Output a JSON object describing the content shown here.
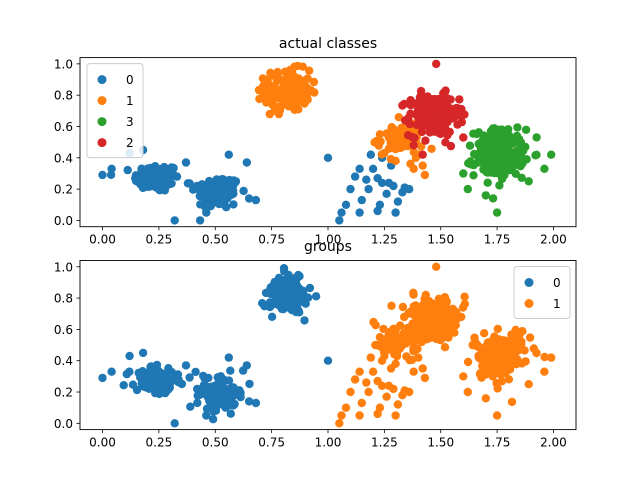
{
  "colors": {
    "class0": "#1f77b4",
    "class1": "#ff7f0e",
    "class3": "#2ca02c",
    "class2": "#d62728"
  },
  "chart_data": [
    {
      "type": "scatter",
      "title": "actual classes",
      "xlabel": "",
      "ylabel": "",
      "xlim": [
        -0.1,
        2.1
      ],
      "ylim": [
        -0.04,
        1.04
      ],
      "xticks": [
        "0.00",
        "0.25",
        "0.50",
        "0.75",
        "1.00",
        "1.25",
        "1.50",
        "1.75",
        "2.00"
      ],
      "yticks": [
        "0.0",
        "0.2",
        "0.4",
        "0.6",
        "0.8",
        "1.0"
      ],
      "grid": false,
      "legend_position": "top-left",
      "legend": [
        "0",
        "1",
        "3",
        "2"
      ],
      "series": [
        {
          "name": "0",
          "color": "#1f77b4",
          "clusters": [
            {
              "cx": 0.24,
              "cy": 0.27,
              "sx": 0.05,
              "sy": 0.045,
              "n": 110
            },
            {
              "cx": 0.51,
              "cy": 0.18,
              "sx": 0.05,
              "sy": 0.055,
              "n": 100
            }
          ],
          "points": [
            [
              0.0,
              0.29
            ],
            [
              0.04,
              0.33
            ],
            [
              0.12,
              0.43
            ],
            [
              0.18,
              0.45
            ],
            [
              0.32,
              0.0
            ],
            [
              0.37,
              0.37
            ],
            [
              0.42,
              0.22
            ],
            [
              0.56,
              0.42
            ],
            [
              0.64,
              0.37
            ],
            [
              0.65,
              0.14
            ],
            [
              0.68,
              0.13
            ],
            [
              0.46,
              0.05
            ],
            [
              1.0,
              0.4
            ],
            [
              1.05,
              0.0
            ],
            [
              1.06,
              0.05
            ],
            [
              1.08,
              0.1
            ],
            [
              1.1,
              0.2
            ],
            [
              1.12,
              0.28
            ],
            [
              1.14,
              0.33
            ],
            [
              1.15,
              0.13
            ],
            [
              1.17,
              0.26
            ],
            [
              1.18,
              0.2
            ],
            [
              1.19,
              0.42
            ],
            [
              1.2,
              0.33
            ],
            [
              1.21,
              0.5
            ],
            [
              1.22,
              0.27
            ],
            [
              1.22,
              0.06
            ],
            [
              1.23,
              0.1
            ],
            [
              1.24,
              0.24
            ],
            [
              1.26,
              0.17
            ],
            [
              1.27,
              0.24
            ],
            [
              1.28,
              0.35
            ],
            [
              1.29,
              0.22
            ],
            [
              1.3,
              0.05
            ],
            [
              1.31,
              0.12
            ],
            [
              1.33,
              0.18
            ],
            [
              1.34,
              0.21
            ],
            [
              1.36,
              0.2
            ],
            [
              1.24,
              0.4
            ],
            [
              1.14,
              0.05
            ]
          ]
        },
        {
          "name": "1",
          "color": "#ff7f0e",
          "clusters": [
            {
              "cx": 0.82,
              "cy": 0.83,
              "sx": 0.05,
              "sy": 0.065,
              "n": 150
            },
            {
              "cx": 1.32,
              "cy": 0.52,
              "sx": 0.05,
              "sy": 0.055,
              "n": 70
            }
          ],
          "points": [
            [
              1.23,
              0.55
            ],
            [
              1.27,
              0.53
            ],
            [
              1.25,
              0.43
            ],
            [
              1.3,
              0.38
            ],
            [
              1.38,
              0.33
            ],
            [
              1.4,
              0.42
            ],
            [
              1.42,
              0.35
            ],
            [
              1.43,
              0.29
            ],
            [
              1.39,
              0.4
            ]
          ]
        },
        {
          "name": "3",
          "color": "#2ca02c",
          "clusters": [
            {
              "cx": 1.76,
              "cy": 0.43,
              "sx": 0.055,
              "sy": 0.075,
              "n": 220
            }
          ],
          "points": [
            [
              1.99,
              0.42
            ],
            [
              1.96,
              0.33
            ],
            [
              1.75,
              0.05
            ],
            [
              1.7,
              0.16
            ],
            [
              1.6,
              0.3
            ],
            [
              1.62,
              0.2
            ],
            [
              1.89,
              0.25
            ]
          ]
        },
        {
          "name": "2",
          "color": "#d62728",
          "clusters": [
            {
              "cx": 1.47,
              "cy": 0.67,
              "sx": 0.055,
              "sy": 0.065,
              "n": 220
            }
          ],
          "points": [
            [
              1.48,
              1.0
            ],
            [
              1.38,
              0.48
            ],
            [
              1.42,
              0.42
            ],
            [
              1.6,
              0.53
            ]
          ]
        }
      ]
    },
    {
      "type": "scatter",
      "title": "groups",
      "xlabel": "",
      "ylabel": "",
      "xlim": [
        -0.1,
        2.1
      ],
      "ylim": [
        -0.04,
        1.04
      ],
      "xticks": [
        "0.00",
        "0.25",
        "0.50",
        "0.75",
        "1.00",
        "1.25",
        "1.50",
        "1.75",
        "2.00"
      ],
      "yticks": [
        "0.0",
        "0.2",
        "0.4",
        "0.6",
        "0.8",
        "1.0"
      ],
      "grid": false,
      "legend_position": "top-right",
      "legend": [
        "0",
        "1"
      ],
      "series": [
        {
          "name": "0",
          "color": "#1f77b4",
          "clusters": [
            {
              "cx": 0.24,
              "cy": 0.27,
              "sx": 0.05,
              "sy": 0.045,
              "n": 110
            },
            {
              "cx": 0.51,
              "cy": 0.18,
              "sx": 0.05,
              "sy": 0.055,
              "n": 100
            },
            {
              "cx": 0.82,
              "cy": 0.83,
              "sx": 0.05,
              "sy": 0.065,
              "n": 150
            }
          ],
          "points": [
            [
              0.0,
              0.29
            ],
            [
              0.04,
              0.33
            ],
            [
              0.12,
              0.43
            ],
            [
              0.18,
              0.45
            ],
            [
              0.32,
              0.0
            ],
            [
              0.37,
              0.37
            ],
            [
              0.42,
              0.22
            ],
            [
              0.56,
              0.42
            ],
            [
              0.64,
              0.37
            ],
            [
              0.65,
              0.14
            ],
            [
              0.68,
              0.13
            ],
            [
              0.46,
              0.05
            ],
            [
              1.0,
              0.4
            ]
          ]
        },
        {
          "name": "1",
          "color": "#ff7f0e",
          "clusters": [
            {
              "cx": 1.32,
              "cy": 0.52,
              "sx": 0.05,
              "sy": 0.055,
              "n": 70
            },
            {
              "cx": 1.47,
              "cy": 0.67,
              "sx": 0.055,
              "sy": 0.065,
              "n": 220
            },
            {
              "cx": 1.76,
              "cy": 0.43,
              "sx": 0.055,
              "sy": 0.075,
              "n": 220
            }
          ],
          "points": [
            [
              1.05,
              0.0
            ],
            [
              1.06,
              0.05
            ],
            [
              1.08,
              0.1
            ],
            [
              1.1,
              0.2
            ],
            [
              1.12,
              0.28
            ],
            [
              1.14,
              0.33
            ],
            [
              1.15,
              0.13
            ],
            [
              1.17,
              0.26
            ],
            [
              1.18,
              0.2
            ],
            [
              1.19,
              0.42
            ],
            [
              1.2,
              0.33
            ],
            [
              1.21,
              0.5
            ],
            [
              1.22,
              0.27
            ],
            [
              1.22,
              0.06
            ],
            [
              1.23,
              0.1
            ],
            [
              1.24,
              0.24
            ],
            [
              1.26,
              0.17
            ],
            [
              1.27,
              0.24
            ],
            [
              1.28,
              0.35
            ],
            [
              1.29,
              0.22
            ],
            [
              1.3,
              0.05
            ],
            [
              1.31,
              0.12
            ],
            [
              1.33,
              0.18
            ],
            [
              1.34,
              0.21
            ],
            [
              1.36,
              0.2
            ],
            [
              1.24,
              0.4
            ],
            [
              1.14,
              0.05
            ],
            [
              1.23,
              0.55
            ],
            [
              1.25,
              0.43
            ],
            [
              1.3,
              0.38
            ],
            [
              1.38,
              0.33
            ],
            [
              1.4,
              0.42
            ],
            [
              1.42,
              0.35
            ],
            [
              1.43,
              0.29
            ],
            [
              1.48,
              1.0
            ],
            [
              1.99,
              0.42
            ],
            [
              1.96,
              0.33
            ],
            [
              1.75,
              0.05
            ],
            [
              1.7,
              0.16
            ],
            [
              1.6,
              0.3
            ],
            [
              1.62,
              0.2
            ],
            [
              1.89,
              0.25
            ]
          ]
        }
      ]
    }
  ]
}
